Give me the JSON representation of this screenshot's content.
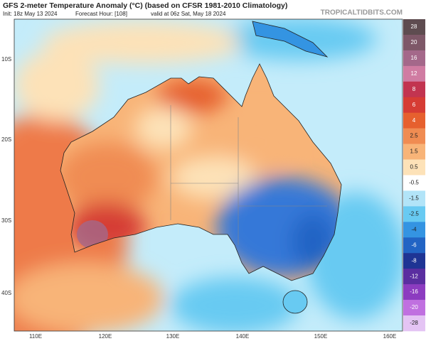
{
  "header": {
    "title": "GFS 2-meter Temperature Anomaly (°C) (based on CFSR 1981-2010 Climatology)",
    "init": "Init: 18z May 13 2024",
    "forecast": "Forecast Hour: [108]",
    "valid": "valid at 06z Sat, May 18 2024",
    "credit": "TROPICALTIDBITS.COM"
  },
  "map": {
    "lat_labels": [
      "10S",
      "20S",
      "30S",
      "40S"
    ],
    "lon_labels": [
      "110E",
      "120E",
      "130E",
      "140E",
      "150E",
      "160E"
    ]
  },
  "colorbar": {
    "ticks": [
      28,
      20,
      16,
      12,
      8,
      6,
      4,
      2.5,
      1.5,
      0.5,
      -0.5,
      -1.5,
      -2.5,
      -4,
      -6,
      -8,
      -12,
      -16,
      -20,
      -28
    ],
    "colors": [
      "#5e4c50",
      "#7e5868",
      "#a4688a",
      "#d07ca2",
      "#c23450",
      "#d63c34",
      "#e6602e",
      "#f08c52",
      "#f8b478",
      "#fde2b8",
      "#ffffff",
      "#b2e4f8",
      "#68caf2",
      "#3494e2",
      "#2264c4",
      "#1e3494",
      "#5a2ea0",
      "#8c3cc0",
      "#c070e0",
      "#e4c4f4"
    ]
  }
}
